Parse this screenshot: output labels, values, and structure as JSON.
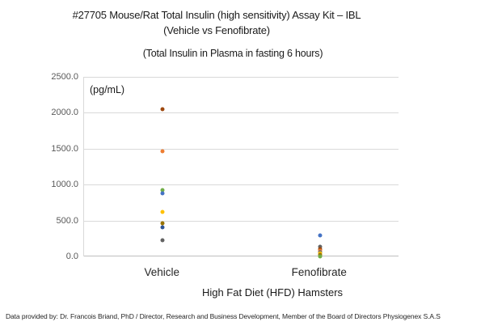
{
  "footer": {
    "text": "Data provided by: Dr. Francois Briand, PhD / Director, Research and Business Development, Member of the Board of Directors Physiogenex S.A.S"
  },
  "chart_data": {
    "type": "scatter",
    "title": "#27705 Mouse/Rat Total Insulin (high sensitivity) Assay Kit – IBL",
    "title_line2": "(Vehicle vs Fenofibrate)",
    "subtitle": "(Total Insulin in Plasma in fasting 6 hours)",
    "unit_label": "(pg/mL)",
    "xlabel": "High Fat Diet (HFD) Hamsters",
    "categories": [
      "Vehicle",
      "Fenofibrate"
    ],
    "ylim": [
      0,
      2500
    ],
    "yticks": [
      "2500.0",
      "2000.0",
      "1500.0",
      "1000.0",
      "500.0",
      "0.0"
    ],
    "grid": true,
    "gridline_color": "#d9d9d9",
    "axis_color": "#bfbfbf",
    "points": [
      {
        "group": "Vehicle",
        "value": 2050,
        "color": "#9e480e"
      },
      {
        "group": "Vehicle",
        "value": 1465,
        "color": "#ed7d31"
      },
      {
        "group": "Vehicle",
        "value": 920,
        "color": "#70ad47"
      },
      {
        "group": "Vehicle",
        "value": 875,
        "color": "#4472c4"
      },
      {
        "group": "Vehicle",
        "value": 625,
        "color": "#ffc000"
      },
      {
        "group": "Vehicle",
        "value": 465,
        "color": "#997300"
      },
      {
        "group": "Vehicle",
        "value": 400,
        "color": "#2f5597"
      },
      {
        "group": "Vehicle",
        "value": 230,
        "color": "#636363"
      },
      {
        "group": "Fenofibrate",
        "value": 290,
        "color": "#4472c4"
      },
      {
        "group": "Fenofibrate",
        "value": 130,
        "color": "#636363"
      },
      {
        "group": "Fenofibrate",
        "value": 105,
        "color": "#9e480e"
      },
      {
        "group": "Fenofibrate",
        "value": 80,
        "color": "#ed7d31"
      },
      {
        "group": "Fenofibrate",
        "value": 60,
        "color": "#2f5597"
      },
      {
        "group": "Fenofibrate",
        "value": 40,
        "color": "#ffc000"
      },
      {
        "group": "Fenofibrate",
        "value": 25,
        "color": "#997300"
      },
      {
        "group": "Fenofibrate",
        "value": 5,
        "color": "#70ad47"
      }
    ]
  }
}
